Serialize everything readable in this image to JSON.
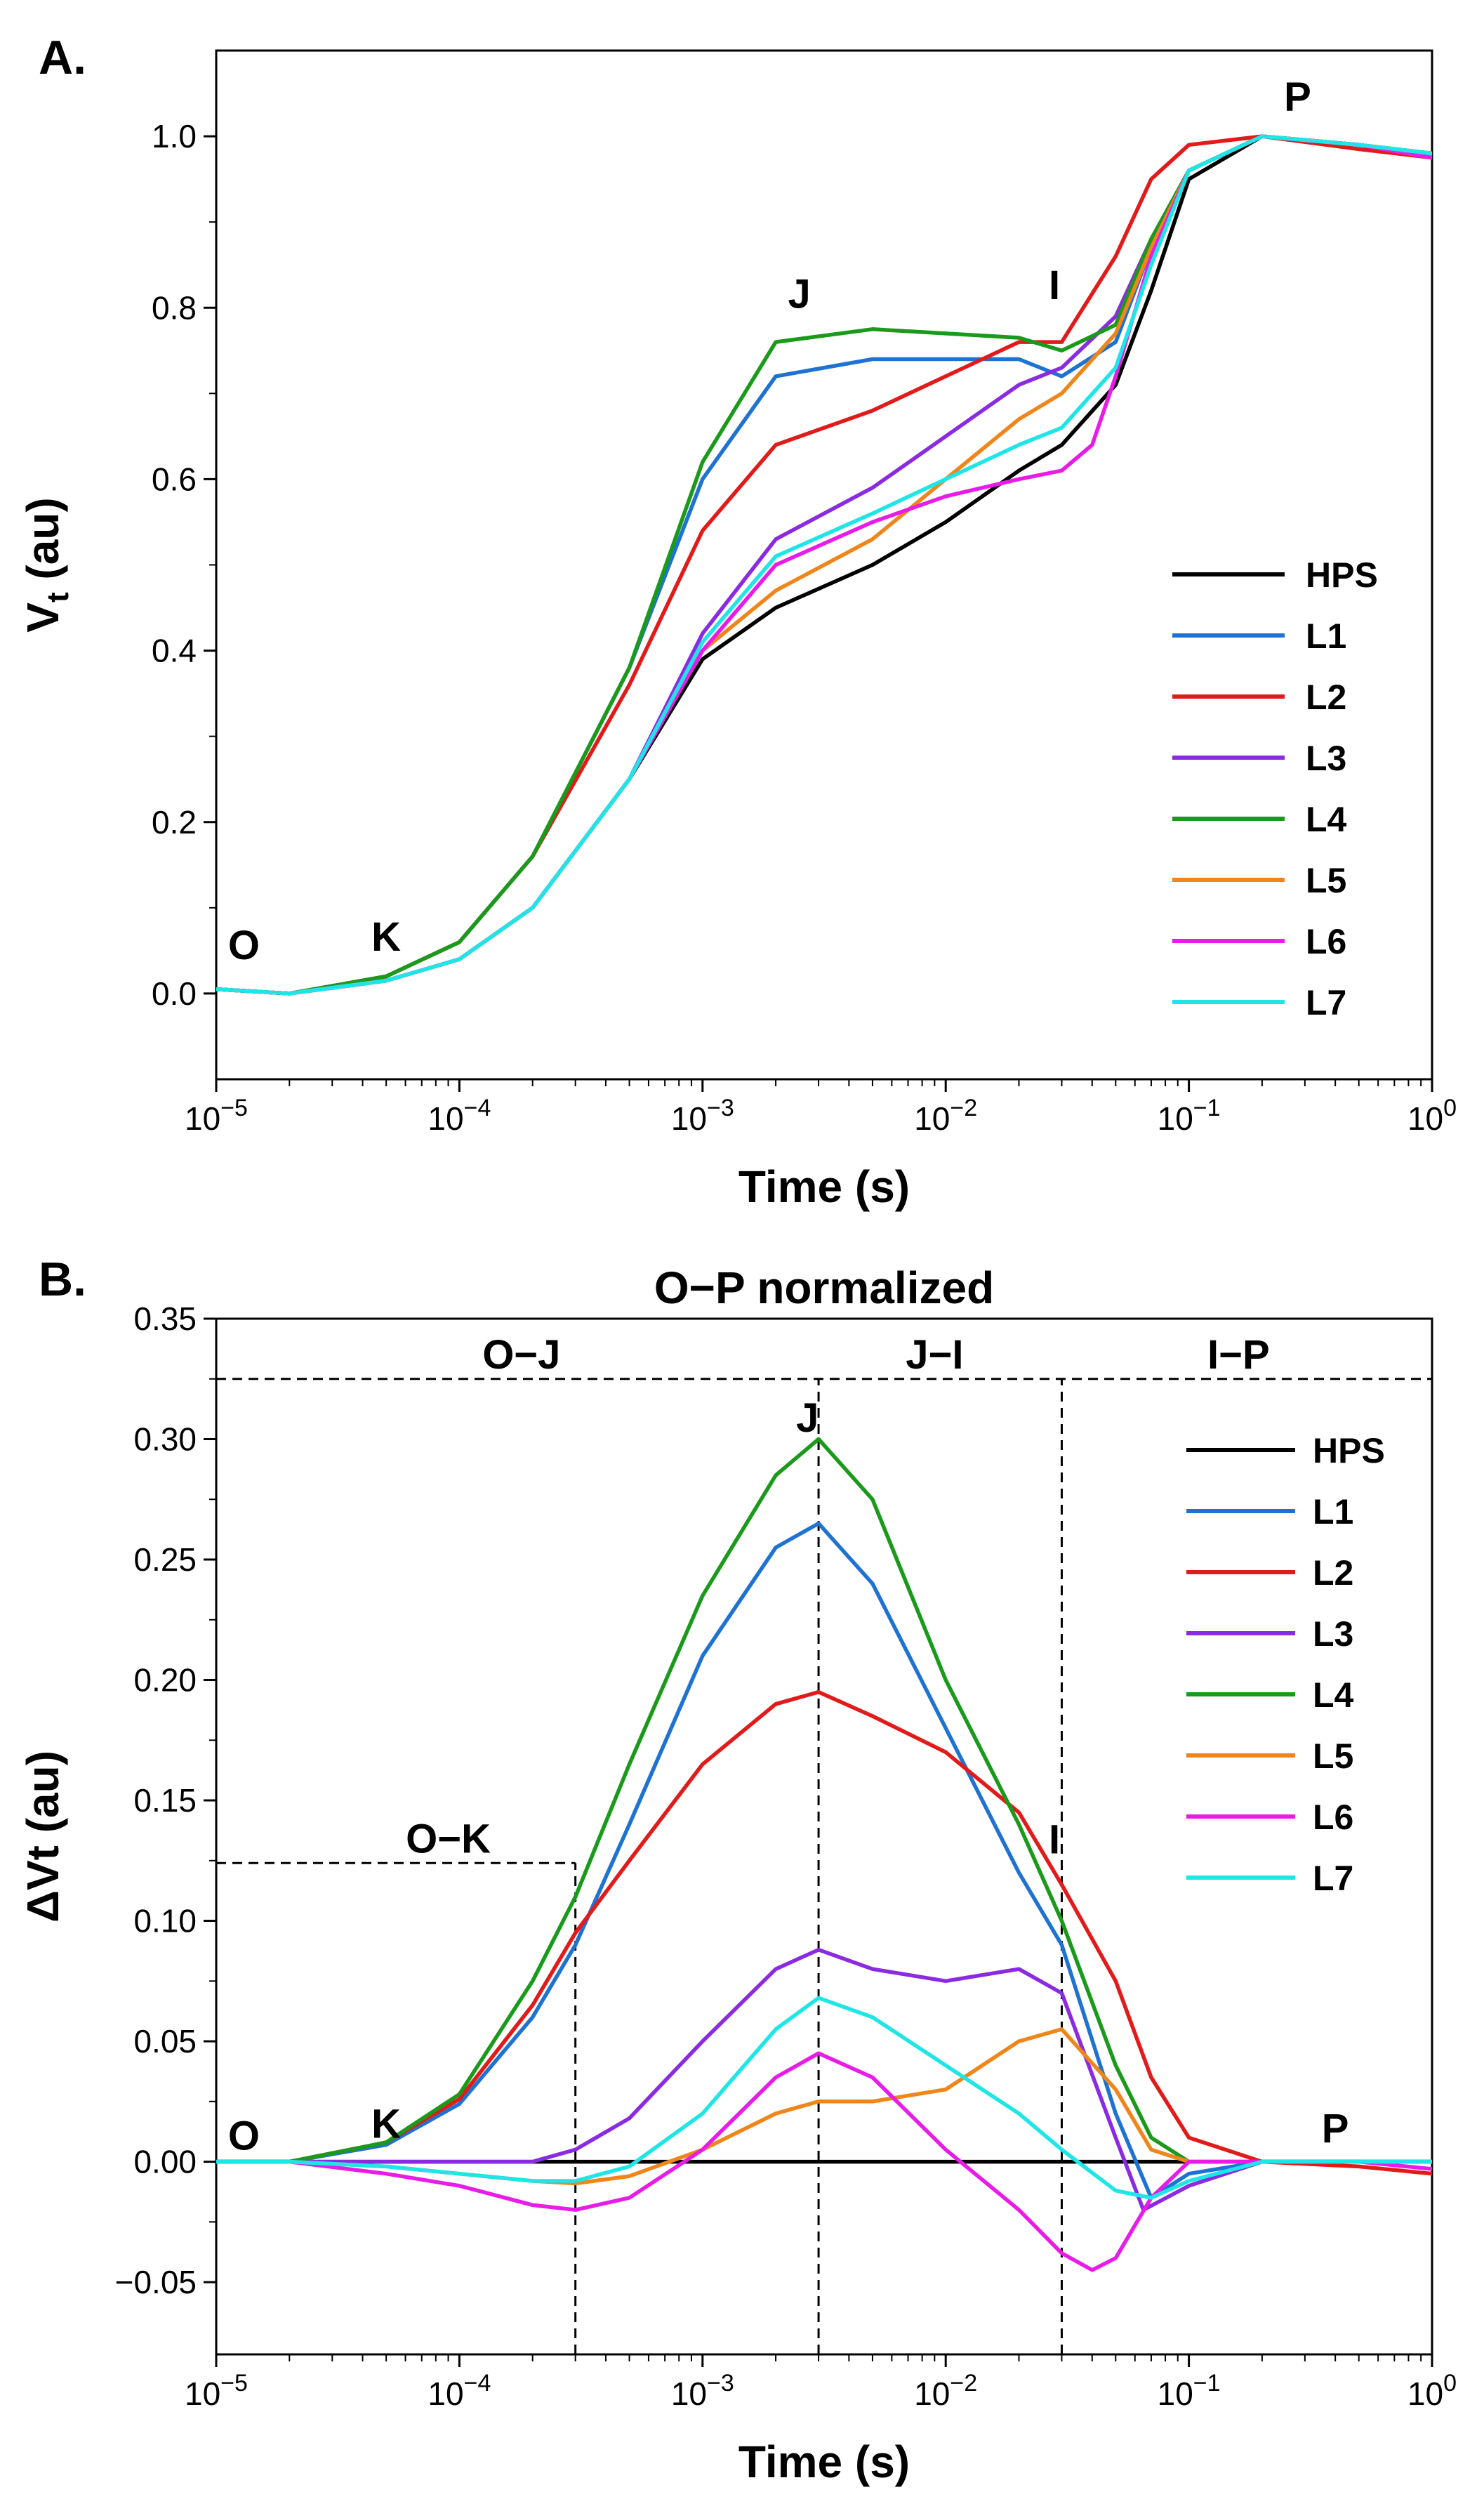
{
  "chart_data": [
    {
      "type": "line",
      "panel_label": "A.",
      "title": "",
      "xlabel": "Time (s)",
      "ylabel_main": "V",
      "ylabel_sub": "t",
      "ylabel_unit": " (au)",
      "xscale": "log",
      "xlim": [
        1e-05,
        1
      ],
      "ylim": [
        -0.1,
        1.1
      ],
      "x_ticks": [
        {
          "base": "10",
          "exp": "-5"
        },
        {
          "base": "10",
          "exp": "-4"
        },
        {
          "base": "10",
          "exp": "-3"
        },
        {
          "base": "10",
          "exp": "-2"
        },
        {
          "base": "10",
          "exp": "-1"
        },
        {
          "base": "10",
          "exp": "0"
        }
      ],
      "y_ticks": [
        "0.0",
        "0.2",
        "0.4",
        "0.6",
        "0.8",
        "1.0"
      ],
      "y_tick_values": [
        0,
        0.2,
        0.4,
        0.6,
        0.8,
        1.0
      ],
      "annotations": [
        {
          "text": "O",
          "x": 1.3e-05,
          "y": 0.04
        },
        {
          "text": "K",
          "x": 5e-05,
          "y": 0.05
        },
        {
          "text": "J",
          "x": 0.0025,
          "y": 0.8
        },
        {
          "text": "I",
          "x": 0.028,
          "y": 0.81
        },
        {
          "text": "P",
          "x": 0.28,
          "y": 1.03
        }
      ],
      "legend_position": "right",
      "series": [
        {
          "name": "HPS",
          "color": "#000000",
          "x": [
            1e-05,
            2e-05,
            5e-05,
            0.0001,
            0.0002,
            0.0005,
            0.001,
            0.002,
            0.005,
            0.01,
            0.02,
            0.03,
            0.05,
            0.07,
            0.1,
            0.2,
            0.5,
            1
          ],
          "y": [
            0.005,
            0.0,
            0.015,
            0.04,
            0.1,
            0.25,
            0.39,
            0.45,
            0.5,
            0.55,
            0.61,
            0.64,
            0.71,
            0.82,
            0.95,
            1.0,
            0.99,
            0.98
          ]
        },
        {
          "name": "L1",
          "color": "#1e73d2",
          "x": [
            1e-05,
            2e-05,
            5e-05,
            0.0001,
            0.0002,
            0.0005,
            0.001,
            0.002,
            0.005,
            0.01,
            0.02,
            0.03,
            0.05,
            0.07,
            0.1,
            0.2,
            0.5,
            1
          ],
          "y": [
            0.005,
            0.0,
            0.02,
            0.06,
            0.16,
            0.38,
            0.6,
            0.72,
            0.74,
            0.74,
            0.74,
            0.72,
            0.76,
            0.87,
            0.96,
            1.0,
            0.99,
            0.98
          ]
        },
        {
          "name": "L2",
          "color": "#e21a1a",
          "x": [
            1e-05,
            2e-05,
            5e-05,
            0.0001,
            0.0002,
            0.0005,
            0.001,
            0.002,
            0.005,
            0.01,
            0.02,
            0.03,
            0.05,
            0.07,
            0.1,
            0.2,
            0.5,
            1
          ],
          "y": [
            0.005,
            0.0,
            0.02,
            0.06,
            0.16,
            0.36,
            0.54,
            0.64,
            0.68,
            0.72,
            0.76,
            0.76,
            0.86,
            0.95,
            0.99,
            1.0,
            0.985,
            0.975
          ]
        },
        {
          "name": "L3",
          "color": "#8a2be2",
          "x": [
            1e-05,
            2e-05,
            5e-05,
            0.0001,
            0.0002,
            0.0005,
            0.001,
            0.002,
            0.005,
            0.01,
            0.02,
            0.03,
            0.05,
            0.07,
            0.1,
            0.2,
            0.5,
            1
          ],
          "y": [
            0.005,
            0.0,
            0.015,
            0.04,
            0.1,
            0.25,
            0.42,
            0.53,
            0.59,
            0.65,
            0.71,
            0.73,
            0.79,
            0.88,
            0.96,
            1.0,
            0.99,
            0.98
          ]
        },
        {
          "name": "L4",
          "color": "#1a9a1a",
          "x": [
            1e-05,
            2e-05,
            5e-05,
            0.0001,
            0.0002,
            0.0005,
            0.001,
            0.002,
            0.005,
            0.01,
            0.02,
            0.03,
            0.05,
            0.07,
            0.1,
            0.2,
            0.5,
            1
          ],
          "y": [
            0.005,
            0.0,
            0.02,
            0.06,
            0.16,
            0.38,
            0.62,
            0.76,
            0.775,
            0.77,
            0.765,
            0.75,
            0.78,
            0.88,
            0.96,
            1.0,
            0.99,
            0.98
          ]
        },
        {
          "name": "L5",
          "color": "#f0861a",
          "x": [
            1e-05,
            2e-05,
            5e-05,
            0.0001,
            0.0002,
            0.0005,
            0.001,
            0.002,
            0.005,
            0.01,
            0.02,
            0.03,
            0.05,
            0.07,
            0.1,
            0.2,
            0.5,
            1
          ],
          "y": [
            0.005,
            0.0,
            0.015,
            0.04,
            0.1,
            0.25,
            0.4,
            0.47,
            0.53,
            0.6,
            0.67,
            0.7,
            0.77,
            0.87,
            0.96,
            1.0,
            0.99,
            0.98
          ]
        },
        {
          "name": "L6",
          "color": "#e81be8",
          "x": [
            1e-05,
            2e-05,
            5e-05,
            0.0001,
            0.0002,
            0.0005,
            0.001,
            0.002,
            0.005,
            0.01,
            0.02,
            0.03,
            0.04,
            0.05,
            0.07,
            0.1,
            0.2,
            0.5,
            1
          ],
          "y": [
            0.005,
            0.0,
            0.015,
            0.04,
            0.1,
            0.25,
            0.4,
            0.5,
            0.55,
            0.58,
            0.6,
            0.61,
            0.64,
            0.72,
            0.86,
            0.96,
            1.0,
            0.99,
            0.975
          ]
        },
        {
          "name": "L7",
          "color": "#1ee6e6",
          "x": [
            1e-05,
            2e-05,
            5e-05,
            0.0001,
            0.0002,
            0.0005,
            0.001,
            0.002,
            0.005,
            0.01,
            0.02,
            0.03,
            0.05,
            0.07,
            0.1,
            0.2,
            0.5,
            1
          ],
          "y": [
            0.005,
            0.0,
            0.015,
            0.04,
            0.1,
            0.25,
            0.41,
            0.51,
            0.56,
            0.6,
            0.64,
            0.66,
            0.73,
            0.85,
            0.96,
            1.0,
            0.99,
            0.98
          ]
        }
      ]
    },
    {
      "type": "line",
      "panel_label": "B.",
      "title": "O−P normalized",
      "xlabel": "Time (s)",
      "ylabel": "ΔVt (au)",
      "xscale": "log",
      "xlim": [
        1e-05,
        1
      ],
      "ylim": [
        -0.08,
        0.35
      ],
      "x_ticks": [
        {
          "base": "10",
          "exp": "-5"
        },
        {
          "base": "10",
          "exp": "-4"
        },
        {
          "base": "10",
          "exp": "-3"
        },
        {
          "base": "10",
          "exp": "-2"
        },
        {
          "base": "10",
          "exp": "-1"
        },
        {
          "base": "10",
          "exp": "0"
        }
      ],
      "y_ticks": [
        "−0.05",
        "0.00",
        "0.05",
        "0.10",
        "0.15",
        "0.20",
        "0.25",
        "0.30",
        "0.35"
      ],
      "y_tick_values": [
        -0.05,
        0,
        0.05,
        0.1,
        0.15,
        0.2,
        0.25,
        0.3,
        0.35
      ],
      "phase_labels": [
        {
          "text": "O−J",
          "x": 0.00018,
          "y": 0.327
        },
        {
          "text": "J−I",
          "x": 0.009,
          "y": 0.327
        },
        {
          "text": "I−P",
          "x": 0.16,
          "y": 0.327
        },
        {
          "text": "O−K",
          "x": 9e-05,
          "y": 0.126
        }
      ],
      "reference_lines": [
        {
          "kind": "horizontal",
          "y": 0.325,
          "x_from": 1e-05,
          "x_to": 1
        },
        {
          "kind": "horizontal",
          "y": 0.124,
          "x_from": 1e-05,
          "x_to": 0.0003
        },
        {
          "kind": "vertical",
          "x": 0.0003,
          "y_from": -0.08,
          "y_to": 0.124
        },
        {
          "kind": "vertical",
          "x": 0.003,
          "y_from": -0.08,
          "y_to": 0.325
        },
        {
          "kind": "vertical",
          "x": 0.03,
          "y_from": -0.08,
          "y_to": 0.325
        }
      ],
      "annotations": [
        {
          "text": "O",
          "x": 1.3e-05,
          "y": 0.005
        },
        {
          "text": "K",
          "x": 5e-05,
          "y": 0.01
        },
        {
          "text": "J",
          "x": 0.0027,
          "y": 0.303
        },
        {
          "text": "I",
          "x": 0.028,
          "y": 0.128
        },
        {
          "text": "P",
          "x": 0.4,
          "y": 0.008
        }
      ],
      "legend_position": "right",
      "series": [
        {
          "name": "HPS",
          "color": "#000000",
          "x": [
            1e-05,
            1
          ],
          "y": [
            0,
            0
          ]
        },
        {
          "name": "L1",
          "color": "#1e73d2",
          "x": [
            1e-05,
            2e-05,
            5e-05,
            0.0001,
            0.0002,
            0.0003,
            0.0005,
            0.001,
            0.002,
            0.003,
            0.005,
            0.01,
            0.02,
            0.03,
            0.05,
            0.07,
            0.1,
            0.2,
            0.5,
            1
          ],
          "y": [
            0.0,
            0.0,
            0.007,
            0.024,
            0.06,
            0.09,
            0.14,
            0.21,
            0.255,
            0.265,
            0.24,
            0.18,
            0.12,
            0.09,
            0.02,
            -0.015,
            -0.005,
            0.0,
            0.0,
            0.0
          ]
        },
        {
          "name": "L2",
          "color": "#e21a1a",
          "x": [
            1e-05,
            2e-05,
            5e-05,
            0.0001,
            0.0002,
            0.0003,
            0.0005,
            0.001,
            0.002,
            0.003,
            0.005,
            0.01,
            0.02,
            0.03,
            0.05,
            0.07,
            0.1,
            0.2,
            0.5,
            1
          ],
          "y": [
            0.0,
            0.0,
            0.008,
            0.026,
            0.065,
            0.095,
            0.125,
            0.165,
            0.19,
            0.195,
            0.185,
            0.17,
            0.145,
            0.115,
            0.075,
            0.035,
            0.01,
            0.0,
            -0.002,
            -0.005
          ]
        },
        {
          "name": "L3",
          "color": "#8a2be2",
          "x": [
            1e-05,
            2e-05,
            5e-05,
            0.0001,
            0.0002,
            0.0003,
            0.0005,
            0.001,
            0.002,
            0.003,
            0.005,
            0.01,
            0.02,
            0.03,
            0.05,
            0.065,
            0.1,
            0.2,
            0.5,
            1
          ],
          "y": [
            0.0,
            0.0,
            0.0,
            0.0,
            0.0,
            0.005,
            0.018,
            0.05,
            0.08,
            0.088,
            0.08,
            0.075,
            0.08,
            0.07,
            0.01,
            -0.02,
            -0.01,
            0.0,
            0.0,
            0.0
          ]
        },
        {
          "name": "L4",
          "color": "#1a9a1a",
          "x": [
            1e-05,
            2e-05,
            5e-05,
            0.0001,
            0.0002,
            0.0003,
            0.0005,
            0.001,
            0.002,
            0.003,
            0.005,
            0.01,
            0.02,
            0.03,
            0.05,
            0.07,
            0.1,
            0.2,
            0.5,
            1
          ],
          "y": [
            0.0,
            0.0,
            0.008,
            0.028,
            0.075,
            0.11,
            0.165,
            0.235,
            0.285,
            0.3,
            0.275,
            0.2,
            0.14,
            0.1,
            0.04,
            0.01,
            0.0,
            0.0,
            0.0,
            0.0
          ]
        },
        {
          "name": "L5",
          "color": "#f0861a",
          "x": [
            1e-05,
            2e-05,
            5e-05,
            0.0001,
            0.0002,
            0.0003,
            0.0005,
            0.001,
            0.002,
            0.003,
            0.005,
            0.01,
            0.02,
            0.03,
            0.05,
            0.07,
            0.1,
            0.2,
            0.5,
            1
          ],
          "y": [
            0.0,
            0.0,
            -0.002,
            -0.005,
            -0.008,
            -0.009,
            -0.006,
            0.005,
            0.02,
            0.025,
            0.025,
            0.03,
            0.05,
            0.055,
            0.03,
            0.005,
            0.0,
            0.0,
            0.0,
            0.0
          ]
        },
        {
          "name": "L6",
          "color": "#e81be8",
          "x": [
            1e-05,
            2e-05,
            5e-05,
            0.0001,
            0.0002,
            0.0003,
            0.0005,
            0.001,
            0.002,
            0.003,
            0.005,
            0.01,
            0.02,
            0.03,
            0.04,
            0.05,
            0.07,
            0.1,
            0.2,
            0.5,
            1
          ],
          "y": [
            0.0,
            0.0,
            -0.005,
            -0.01,
            -0.018,
            -0.02,
            -0.015,
            0.005,
            0.035,
            0.045,
            0.035,
            0.005,
            -0.02,
            -0.038,
            -0.045,
            -0.04,
            -0.015,
            0.0,
            0.0,
            0.0,
            -0.003
          ]
        },
        {
          "name": "L7",
          "color": "#1ee6e6",
          "x": [
            1e-05,
            2e-05,
            5e-05,
            0.0001,
            0.0002,
            0.0003,
            0.0005,
            0.001,
            0.002,
            0.003,
            0.005,
            0.01,
            0.02,
            0.03,
            0.05,
            0.07,
            0.1,
            0.2,
            0.5,
            1
          ],
          "y": [
            0.0,
            0.0,
            -0.002,
            -0.005,
            -0.008,
            -0.008,
            -0.002,
            0.02,
            0.055,
            0.068,
            0.06,
            0.04,
            0.02,
            0.005,
            -0.012,
            -0.015,
            -0.008,
            0.0,
            0.0,
            0.0
          ]
        }
      ]
    }
  ]
}
